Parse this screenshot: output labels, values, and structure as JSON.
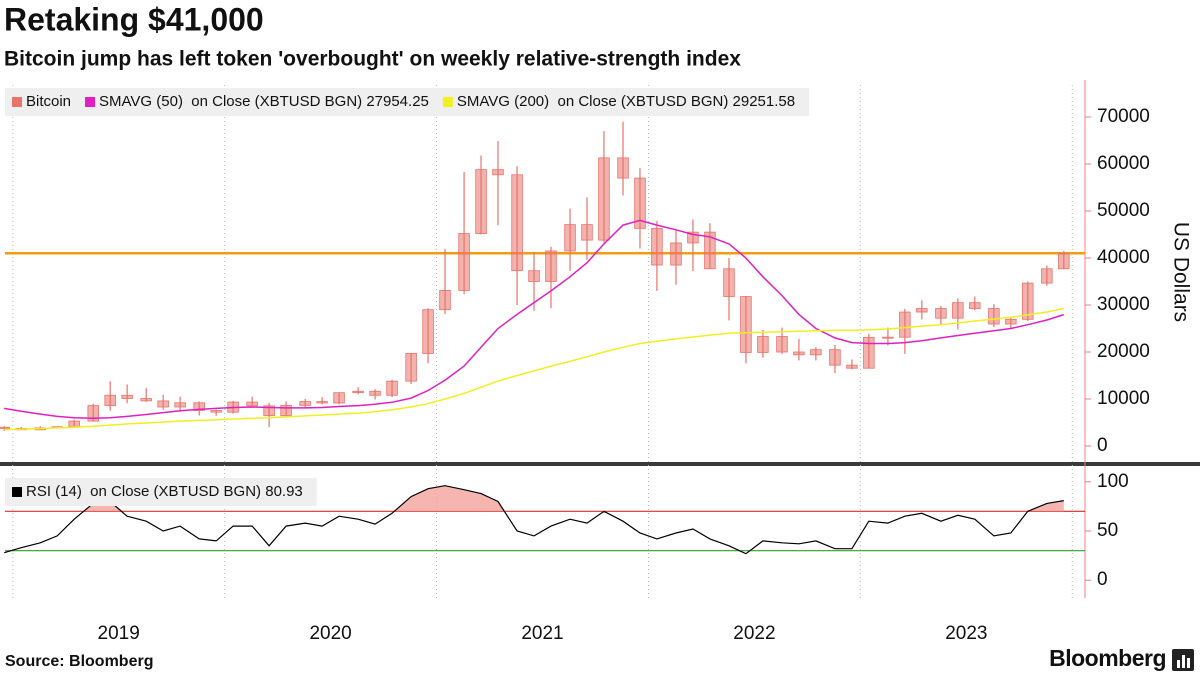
{
  "source": "Source: Bloomberg",
  "brand": "Bloomberg",
  "chart_data": [
    {
      "type": "candlestick",
      "title": "Retaking $41,000",
      "subtitle": "Bitcoin jump has left token 'overbought' on weekly relative-strength index",
      "y_label": "US Dollars",
      "x": [
        2018.96,
        2019.04,
        2019.13,
        2019.21,
        2019.29,
        2019.38,
        2019.46,
        2019.54,
        2019.63,
        2019.71,
        2019.79,
        2019.88,
        2019.96,
        2020.04,
        2020.13,
        2020.21,
        2020.29,
        2020.38,
        2020.46,
        2020.54,
        2020.63,
        2020.71,
        2020.79,
        2020.88,
        2020.96,
        2021.04,
        2021.13,
        2021.21,
        2021.29,
        2021.38,
        2021.46,
        2021.54,
        2021.63,
        2021.71,
        2021.79,
        2021.88,
        2021.96,
        2022.04,
        2022.13,
        2022.21,
        2022.29,
        2022.38,
        2022.46,
        2022.54,
        2022.63,
        2022.71,
        2022.79,
        2022.88,
        2022.96,
        2023.04,
        2023.13,
        2023.21,
        2023.29,
        2023.38,
        2023.46,
        2023.54,
        2023.63,
        2023.71,
        2023.79,
        2023.88,
        2023.96
      ],
      "xlim": [
        2018.94,
        2024.06
      ],
      "xticks": [
        {
          "value": 2019.5,
          "label": "2019"
        },
        {
          "value": 2020.5,
          "label": "2020"
        },
        {
          "value": 2021.5,
          "label": "2021"
        },
        {
          "value": 2022.5,
          "label": "2022"
        },
        {
          "value": 2023.5,
          "label": "2023"
        }
      ],
      "xgrid": [
        2019,
        2020,
        2021,
        2022,
        2023,
        2024
      ],
      "ylim": [
        -3400,
        76800
      ],
      "yticks": [
        0,
        10000,
        20000,
        30000,
        40000,
        50000,
        60000,
        70000
      ],
      "reference_lines": [
        {
          "value": 41000,
          "color": "#f39c12"
        }
      ],
      "series": [
        {
          "name": "Bitcoin",
          "type": "ohlc",
          "color": "#e8736b",
          "open": [
            4000,
            3750,
            3450,
            3850,
            4100,
            5300,
            8600,
            10800,
            10100,
            9600,
            8300,
            9200,
            7550,
            7200,
            9350,
            8550,
            6450,
            8650,
            9450,
            9150,
            11350,
            11650,
            10800,
            13800,
            19700,
            29000,
            33100,
            45200,
            58800,
            57700,
            37300,
            35000,
            41500,
            47100,
            43800,
            61300,
            57000,
            46300,
            38500,
            43200,
            45500,
            37700,
            31800,
            19900,
            23300,
            20000,
            19400,
            20500,
            17200,
            16550,
            23100,
            23150,
            28500,
            29250,
            27200,
            30500,
            29250,
            25950,
            26950,
            34650,
            37700
          ],
          "high": [
            4200,
            4100,
            4200,
            4100,
            5600,
            9000,
            13800,
            13100,
            12300,
            10900,
            10500,
            9500,
            7750,
            9600,
            10500,
            9200,
            9450,
            10000,
            10400,
            11400,
            12500,
            12100,
            14100,
            19800,
            29300,
            41950,
            58300,
            61800,
            64900,
            59500,
            41300,
            42400,
            50500,
            52900,
            67000,
            69000,
            59100,
            47900,
            45800,
            48200,
            47400,
            40000,
            31900,
            24700,
            25200,
            22800,
            21000,
            21500,
            18400,
            23900,
            25200,
            29200,
            31000,
            29800,
            31400,
            31800,
            30200,
            27500,
            35000,
            38400,
            41500
          ],
          "low": [
            3200,
            3400,
            3400,
            3700,
            4100,
            5300,
            7500,
            9100,
            9400,
            7700,
            7300,
            6500,
            6450,
            6900,
            8500,
            4000,
            6150,
            8100,
            8900,
            8900,
            11000,
            9900,
            10400,
            13200,
            17600,
            28100,
            32300,
            45000,
            47000,
            30000,
            28800,
            29300,
            37300,
            39600,
            43300,
            53300,
            42000,
            33000,
            34300,
            37200,
            37700,
            26700,
            17600,
            18800,
            19600,
            18200,
            18200,
            15500,
            16300,
            16500,
            21400,
            19600,
            26900,
            25800,
            24800,
            28900,
            25300,
            24900,
            26600,
            34100,
            37600
          ],
          "close": [
            3750,
            3450,
            3850,
            4100,
            5300,
            8600,
            10800,
            10100,
            9600,
            8300,
            9200,
            7550,
            7200,
            9350,
            8550,
            6450,
            8650,
            9450,
            9150,
            11350,
            11650,
            10800,
            13800,
            19700,
            29000,
            33100,
            45200,
            58800,
            57700,
            37300,
            35000,
            41500,
            47100,
            43800,
            61300,
            57000,
            46300,
            38500,
            43200,
            45500,
            37700,
            31800,
            19900,
            23300,
            20000,
            19400,
            20500,
            17200,
            16550,
            23100,
            23150,
            28500,
            29250,
            27200,
            30500,
            29250,
            25950,
            26950,
            34650,
            37700,
            41000
          ]
        },
        {
          "name": "SMAVG (50)  on Close (XBTUSD BGN) 27954.25",
          "type": "line",
          "color": "#e020c0",
          "values": [
            8000,
            7400,
            6800,
            6300,
            6000,
            5900,
            6000,
            6300,
            6700,
            7100,
            7500,
            7800,
            8000,
            8200,
            8300,
            8200,
            8100,
            8100,
            8200,
            8400,
            8600,
            8900,
            9300,
            10200,
            11800,
            14000,
            17000,
            21000,
            25000,
            28000,
            30500,
            33000,
            36000,
            39000,
            43000,
            47000,
            48000,
            47000,
            46000,
            45000,
            44500,
            43000,
            40000,
            36000,
            32000,
            28000,
            25000,
            23000,
            22000,
            21800,
            21800,
            22000,
            22400,
            23000,
            23500,
            24000,
            24500,
            25000,
            25800,
            26800,
            27954.25
          ]
        },
        {
          "name": "SMAVG (200)  on Close (XBTUSD BGN) 29251.58",
          "type": "line",
          "color": "#f0f020",
          "values": [
            3500,
            3600,
            3700,
            3850,
            4000,
            4200,
            4450,
            4700,
            4900,
            5100,
            5300,
            5450,
            5600,
            5750,
            5900,
            6000,
            6200,
            6400,
            6600,
            6800,
            7000,
            7300,
            7700,
            8300,
            9000,
            10000,
            11200,
            12500,
            13800,
            15000,
            16000,
            17000,
            18000,
            19000,
            20000,
            21000,
            21800,
            22300,
            22800,
            23200,
            23600,
            24000,
            24100,
            24200,
            24300,
            24400,
            24500,
            24600,
            24600,
            24700,
            24900,
            25200,
            25500,
            25800,
            26200,
            26600,
            27000,
            27400,
            27900,
            28500,
            29251.58
          ]
        }
      ]
    },
    {
      "type": "line",
      "ylim": [
        -15,
        114
      ],
      "yticks": [
        0,
        50,
        100
      ],
      "reference_lines": [
        {
          "value": 70,
          "color": "#d62728"
        },
        {
          "value": 30,
          "color": "#2ca02c"
        }
      ],
      "fill_above": {
        "value": 70,
        "color": "#f4a29b"
      },
      "series": [
        {
          "name": "RSI (14)  on Close (XBTUSD BGN) 80.93",
          "color": "#000000",
          "values": [
            28,
            33,
            38,
            45,
            62,
            78,
            80,
            65,
            60,
            50,
            55,
            42,
            40,
            55,
            55,
            35,
            55,
            58,
            55,
            65,
            62,
            57,
            68,
            85,
            93,
            96,
            92,
            88,
            80,
            50,
            45,
            55,
            62,
            58,
            70,
            60,
            48,
            42,
            48,
            52,
            42,
            35,
            27,
            40,
            38,
            37,
            40,
            32,
            32,
            60,
            58,
            65,
            68,
            60,
            66,
            62,
            45,
            48,
            70,
            78,
            80.93
          ]
        }
      ]
    }
  ]
}
